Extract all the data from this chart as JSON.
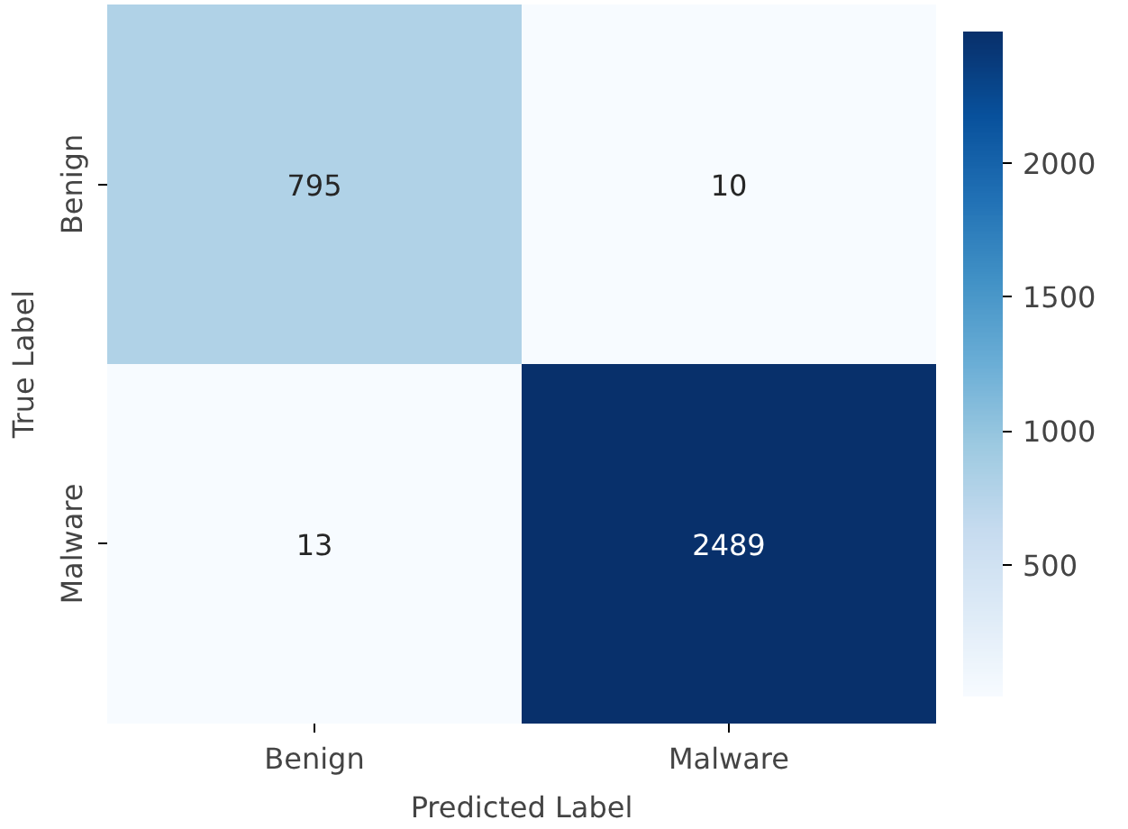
{
  "chart_data": {
    "type": "heatmap",
    "xlabel": "Predicted Label",
    "ylabel": "True Label",
    "categories": [
      "Benign",
      "Malware"
    ],
    "y_categories": [
      "Benign",
      "Malware"
    ],
    "cells": [
      [
        795,
        10
      ],
      [
        13,
        2489
      ]
    ],
    "clim": [
      10,
      2489
    ],
    "cticks": [
      500,
      1000,
      1500,
      2000
    ],
    "data_labels": true
  }
}
